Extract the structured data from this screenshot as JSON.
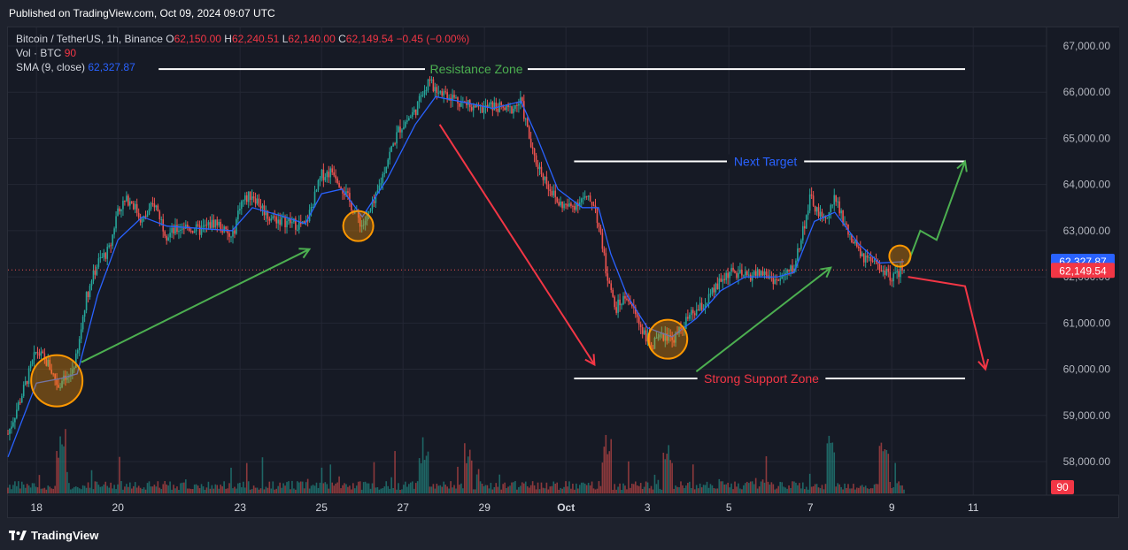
{
  "header": {
    "published": "Published on TradingView.com, Oct 09, 2024 09:07 UTC"
  },
  "legend": {
    "symbol": "Bitcoin / TetherUS, 1h, Binance",
    "o_label": "O",
    "o_value": "62,150.00",
    "h_label": "H",
    "h_value": "62,240.51",
    "l_label": "L",
    "l_value": "62,140.00",
    "c_label": "C",
    "c_value": "62,149.54",
    "change": "−0.45 (−0.00%)",
    "vol_label": "Vol · BTC",
    "vol_value": "90",
    "sma_label": "SMA (9, close)",
    "sma_value": "62,327.87"
  },
  "footer": {
    "brand": "TradingView"
  },
  "colors": {
    "up": "#26a69a",
    "down": "#ef5350",
    "sma": "#2962ff",
    "green_arrow": "#4caf50",
    "red_arrow": "#f23645",
    "circle": "#ff9800",
    "background": "#161a25"
  },
  "chart_data": {
    "type": "line",
    "title": "Bitcoin / TetherUS, 1h, Binance",
    "xlabel": "",
    "ylabel": "",
    "ylim": [
      57500,
      67500
    ],
    "grid": true,
    "y_ticks": [
      "67,000.00",
      "66,000.00",
      "65,000.00",
      "64,000.00",
      "63,000.00",
      "62,000.00",
      "61,000.00",
      "60,000.00",
      "59,000.00",
      "58,000.00"
    ],
    "y_tick_values": [
      67000,
      66000,
      65000,
      64000,
      63000,
      62000,
      61000,
      60000,
      59000,
      58000
    ],
    "x_ticks": [
      "18",
      "20",
      "23",
      "25",
      "27",
      "29",
      "Oct",
      "3",
      "5",
      "7",
      "9",
      "11"
    ],
    "x_tick_days": [
      18,
      20,
      23,
      25,
      27,
      29,
      31,
      33,
      35,
      37,
      39,
      41
    ],
    "x_range_days": [
      17.3,
      42.8
    ],
    "current_price_label": "62,149.54",
    "current_price": 62149.54,
    "sma_price_label": "62,327.87",
    "sma_price": 62327.87,
    "volume_label": "90",
    "price_path": [
      {
        "t": 17.3,
        "p": 58600
      },
      {
        "t": 17.7,
        "p": 59600
      },
      {
        "t": 18.0,
        "p": 60400
      },
      {
        "t": 18.3,
        "p": 60100
      },
      {
        "t": 18.5,
        "p": 59700
      },
      {
        "t": 18.8,
        "p": 59800
      },
      {
        "t": 19.0,
        "p": 60300
      },
      {
        "t": 19.2,
        "p": 61500
      },
      {
        "t": 19.5,
        "p": 62300
      },
      {
        "t": 19.8,
        "p": 62600
      },
      {
        "t": 20.0,
        "p": 63500
      },
      {
        "t": 20.3,
        "p": 63700
      },
      {
        "t": 20.6,
        "p": 63200
      },
      {
        "t": 20.9,
        "p": 63600
      },
      {
        "t": 21.2,
        "p": 62900
      },
      {
        "t": 21.6,
        "p": 63100
      },
      {
        "t": 22.0,
        "p": 63000
      },
      {
        "t": 22.4,
        "p": 63200
      },
      {
        "t": 22.8,
        "p": 62800
      },
      {
        "t": 23.0,
        "p": 63600
      },
      {
        "t": 23.3,
        "p": 63800
      },
      {
        "t": 23.7,
        "p": 63300
      },
      {
        "t": 24.1,
        "p": 63200
      },
      {
        "t": 24.6,
        "p": 63100
      },
      {
        "t": 25.0,
        "p": 64200
      },
      {
        "t": 25.3,
        "p": 64300
      },
      {
        "t": 25.7,
        "p": 63600
      },
      {
        "t": 26.0,
        "p": 63100
      },
      {
        "t": 26.3,
        "p": 63600
      },
      {
        "t": 26.6,
        "p": 64500
      },
      {
        "t": 26.9,
        "p": 65200
      },
      {
        "t": 27.3,
        "p": 65600
      },
      {
        "t": 27.6,
        "p": 66200
      },
      {
        "t": 28.0,
        "p": 66000
      },
      {
        "t": 28.4,
        "p": 65800
      },
      {
        "t": 28.8,
        "p": 65600
      },
      {
        "t": 29.2,
        "p": 65700
      },
      {
        "t": 29.6,
        "p": 65600
      },
      {
        "t": 29.9,
        "p": 65800
      },
      {
        "t": 30.2,
        "p": 64600
      },
      {
        "t": 30.5,
        "p": 64100
      },
      {
        "t": 30.8,
        "p": 63600
      },
      {
        "t": 31.1,
        "p": 63500
      },
      {
        "t": 31.4,
        "p": 63700
      },
      {
        "t": 31.7,
        "p": 63600
      },
      {
        "t": 32.0,
        "p": 62100
      },
      {
        "t": 32.2,
        "p": 61300
      },
      {
        "t": 32.5,
        "p": 61600
      },
      {
        "t": 32.8,
        "p": 61000
      },
      {
        "t": 33.1,
        "p": 60500
      },
      {
        "t": 33.4,
        "p": 60700
      },
      {
        "t": 33.7,
        "p": 60700
      },
      {
        "t": 34.0,
        "p": 61100
      },
      {
        "t": 34.4,
        "p": 61400
      },
      {
        "t": 34.8,
        "p": 61900
      },
      {
        "t": 35.0,
        "p": 62100
      },
      {
        "t": 35.4,
        "p": 62000
      },
      {
        "t": 35.8,
        "p": 62100
      },
      {
        "t": 36.2,
        "p": 61900
      },
      {
        "t": 36.6,
        "p": 62200
      },
      {
        "t": 37.0,
        "p": 63700
      },
      {
        "t": 37.3,
        "p": 63200
      },
      {
        "t": 37.6,
        "p": 63700
      },
      {
        "t": 38.0,
        "p": 62800
      },
      {
        "t": 38.3,
        "p": 62400
      },
      {
        "t": 38.7,
        "p": 62200
      },
      {
        "t": 39.0,
        "p": 62000
      },
      {
        "t": 39.3,
        "p": 62150
      }
    ],
    "sma_path": [
      {
        "t": 17.3,
        "p": 58100
      },
      {
        "t": 18.0,
        "p": 59700
      },
      {
        "t": 18.6,
        "p": 59800
      },
      {
        "t": 19.0,
        "p": 59900
      },
      {
        "t": 19.5,
        "p": 61600
      },
      {
        "t": 20.0,
        "p": 62800
      },
      {
        "t": 20.6,
        "p": 63300
      },
      {
        "t": 21.2,
        "p": 63100
      },
      {
        "t": 22.0,
        "p": 63050
      },
      {
        "t": 22.8,
        "p": 63000
      },
      {
        "t": 23.3,
        "p": 63500
      },
      {
        "t": 24.1,
        "p": 63300
      },
      {
        "t": 24.6,
        "p": 63150
      },
      {
        "t": 25.0,
        "p": 63800
      },
      {
        "t": 25.5,
        "p": 63900
      },
      {
        "t": 26.0,
        "p": 63300
      },
      {
        "t": 26.6,
        "p": 64100
      },
      {
        "t": 27.3,
        "p": 65300
      },
      {
        "t": 27.8,
        "p": 65900
      },
      {
        "t": 28.4,
        "p": 65800
      },
      {
        "t": 29.2,
        "p": 65650
      },
      {
        "t": 29.9,
        "p": 65800
      },
      {
        "t": 30.3,
        "p": 65000
      },
      {
        "t": 30.8,
        "p": 63900
      },
      {
        "t": 31.4,
        "p": 63500
      },
      {
        "t": 31.8,
        "p": 63500
      },
      {
        "t": 32.1,
        "p": 62500
      },
      {
        "t": 32.5,
        "p": 61600
      },
      {
        "t": 33.0,
        "p": 60900
      },
      {
        "t": 33.6,
        "p": 60700
      },
      {
        "t": 34.2,
        "p": 61100
      },
      {
        "t": 34.8,
        "p": 61700
      },
      {
        "t": 35.4,
        "p": 62000
      },
      {
        "t": 36.2,
        "p": 62000
      },
      {
        "t": 36.6,
        "p": 62100
      },
      {
        "t": 37.1,
        "p": 63200
      },
      {
        "t": 37.6,
        "p": 63400
      },
      {
        "t": 38.2,
        "p": 62700
      },
      {
        "t": 38.7,
        "p": 62300
      },
      {
        "t": 39.3,
        "p": 62330
      }
    ],
    "annotations": [
      {
        "type": "hline",
        "text": "Resistance Zone",
        "price": 66500,
        "t1": 21.0,
        "t2": 40.8,
        "text_t": 28.8,
        "color": "#ffffff",
        "text_color": "#4caf50"
      },
      {
        "type": "hline",
        "text": "Next Target",
        "price": 64500,
        "t1": 31.2,
        "t2": 40.8,
        "text_t": 35.9,
        "color": "#ffffff",
        "text_color": "#2962ff"
      },
      {
        "type": "hline",
        "text": "Strong Support Zone",
        "price": 59800,
        "t1": 31.2,
        "t2": 40.8,
        "text_t": 35.8,
        "color": "#ffffff",
        "text_color": "#f23645"
      }
    ],
    "arrows": [
      {
        "color": "#4caf50",
        "points": [
          [
            19.1,
            60150
          ],
          [
            24.7,
            62600
          ]
        ]
      },
      {
        "color": "#f23645",
        "points": [
          [
            27.9,
            65300
          ],
          [
            31.7,
            60100
          ]
        ]
      },
      {
        "color": "#4caf50",
        "points": [
          [
            34.2,
            59950
          ],
          [
            37.5,
            62200
          ]
        ]
      },
      {
        "color": "#4caf50",
        "points": [
          [
            39.4,
            62300
          ],
          [
            39.7,
            63000
          ],
          [
            40.1,
            62800
          ],
          [
            40.8,
            64500
          ]
        ]
      },
      {
        "color": "#f23645",
        "points": [
          [
            39.4,
            62000
          ],
          [
            40.8,
            61800
          ],
          [
            41.3,
            60000
          ]
        ]
      }
    ],
    "circles": [
      {
        "t": 18.5,
        "p": 59750,
        "r": 29
      },
      {
        "t": 25.9,
        "p": 63100,
        "r": 17
      },
      {
        "t": 33.5,
        "p": 60650,
        "r": 22
      },
      {
        "t": 39.2,
        "p": 62450,
        "r": 12
      }
    ]
  }
}
